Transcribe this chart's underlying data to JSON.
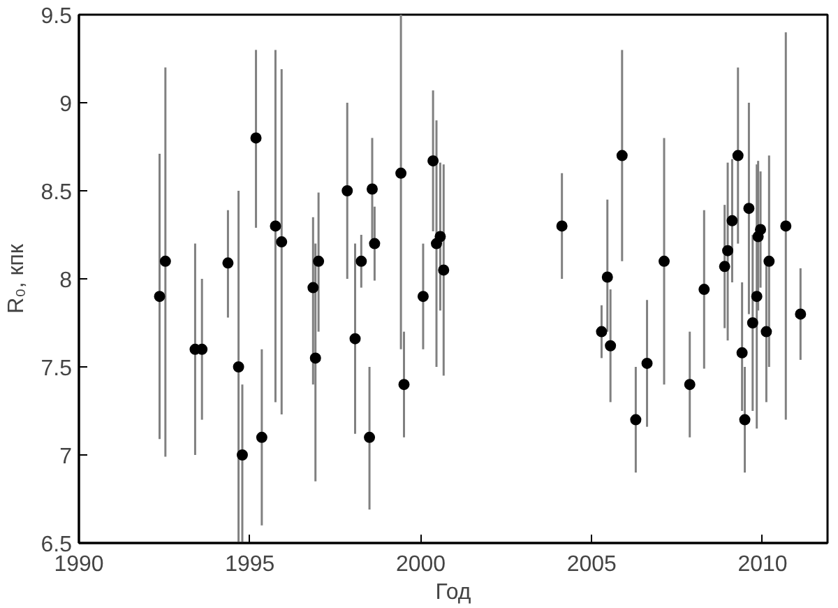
{
  "chart_data": {
    "type": "scatter",
    "xlabel": "Год",
    "ylabel": "R₀, кпк",
    "xlim": [
      1990,
      2011.9
    ],
    "ylim": [
      6.5,
      9.5
    ],
    "xticks": [
      1990,
      1995,
      2000,
      2005,
      2010
    ],
    "yticks": [
      6.5,
      7,
      7.5,
      8,
      8.5,
      9,
      9.5
    ],
    "grid": false,
    "marker": "circle",
    "series": [
      {
        "color": "#000000",
        "x": [
          1992.36,
          1992.53,
          1993.4,
          1993.6,
          1994.36,
          1994.67,
          1994.78,
          1995.18,
          1995.35,
          1995.75,
          1995.93,
          1996.85,
          1996.92,
          1997.01,
          1997.85,
          1998.08,
          1998.26,
          1998.5,
          1998.58,
          1998.65,
          1999.42,
          1999.51,
          2000.07,
          2000.36,
          2000.46,
          2000.57,
          2000.67,
          2004.13,
          2005.29,
          2005.46,
          2005.55,
          2005.89,
          2006.29,
          2006.62,
          2007.12,
          2007.87,
          2008.29,
          2008.89,
          2008.98,
          2009.11,
          2009.28,
          2009.4,
          2009.48,
          2009.6,
          2009.71,
          2009.83,
          2009.87,
          2009.94,
          2010.11,
          2010.19,
          2010.68,
          2011.11
        ],
        "values": [
          7.9,
          8.1,
          7.6,
          7.6,
          8.09,
          7.5,
          7.0,
          8.8,
          7.1,
          8.3,
          8.21,
          7.95,
          7.55,
          8.1,
          8.5,
          7.66,
          8.1,
          7.1,
          8.51,
          8.2,
          8.6,
          7.4,
          7.9,
          8.67,
          8.2,
          8.24,
          8.05,
          8.3,
          7.7,
          8.01,
          7.62,
          8.7,
          7.2,
          7.52,
          8.1,
          7.4,
          7.94,
          8.07,
          8.16,
          8.33,
          8.7,
          7.58,
          7.2,
          8.4,
          7.75,
          7.9,
          8.24,
          8.28,
          7.7,
          8.1,
          8.3,
          7.8
        ],
        "errors": [
          [
            7.09,
            8.71
          ],
          [
            6.99,
            9.2
          ],
          [
            7.0,
            8.2
          ],
          [
            7.2,
            8.0
          ],
          [
            7.78,
            8.39
          ],
          [
            6.5,
            8.5
          ],
          [
            6.5,
            7.4
          ],
          [
            8.29,
            9.3
          ],
          [
            6.6,
            7.6
          ],
          [
            7.3,
            9.3
          ],
          [
            7.23,
            9.19
          ],
          [
            7.4,
            8.35
          ],
          [
            6.85,
            8.2
          ],
          [
            7.7,
            8.49
          ],
          [
            8.0,
            9.0
          ],
          [
            7.12,
            8.2
          ],
          [
            7.95,
            8.25
          ],
          [
            6.69,
            7.5
          ],
          [
            8.2,
            8.8
          ],
          [
            7.99,
            8.41
          ],
          [
            7.6,
            9.5
          ],
          [
            7.1,
            7.7
          ],
          [
            7.6,
            8.2
          ],
          [
            8.27,
            9.07
          ],
          [
            7.5,
            8.9
          ],
          [
            7.82,
            8.66
          ],
          [
            7.45,
            8.65
          ],
          [
            8.0,
            8.6
          ],
          [
            7.55,
            7.85
          ],
          [
            7.7,
            8.45
          ],
          [
            7.3,
            7.94
          ],
          [
            8.1,
            9.3
          ],
          [
            6.9,
            7.5
          ],
          [
            7.16,
            7.88
          ],
          [
            7.4,
            8.8
          ],
          [
            7.1,
            7.7
          ],
          [
            7.49,
            8.39
          ],
          [
            7.72,
            8.42
          ],
          [
            7.65,
            8.66
          ],
          [
            7.98,
            8.68
          ],
          [
            8.2,
            9.2
          ],
          [
            7.25,
            7.98
          ],
          [
            6.9,
            7.5
          ],
          [
            7.8,
            9.0
          ],
          [
            7.25,
            8.25
          ],
          [
            7.15,
            8.65
          ],
          [
            7.82,
            8.67
          ],
          [
            7.95,
            8.61
          ],
          [
            7.3,
            8.1
          ],
          [
            7.5,
            8.7
          ],
          [
            7.2,
            9.4
          ],
          [
            7.54,
            8.06
          ]
        ]
      }
    ]
  }
}
